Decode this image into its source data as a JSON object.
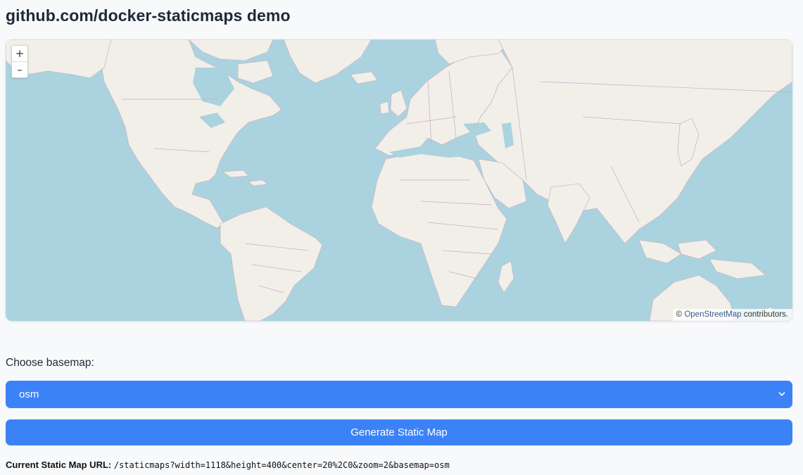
{
  "page": {
    "title": "github.com/docker-staticmaps demo"
  },
  "map": {
    "zoom_in_label": "+",
    "zoom_out_label": "–",
    "attribution_prefix": "© ",
    "attribution_link": "OpenStreetMap",
    "attribution_suffix": " contributors.",
    "colors": {
      "water": "#aad3df",
      "land": "#f2efe9",
      "border": "#c9a9c9"
    }
  },
  "controls": {
    "basemap_label": "Choose basemap:",
    "basemap_selected": "osm",
    "generate_button": "Generate Static Map",
    "accent_color": "#3b82f6"
  },
  "status": {
    "url_label": "Current Static Map URL:",
    "url_value": "/staticmaps?width=1118&height=400&center=20%2C0&zoom=2&basemap=osm"
  }
}
